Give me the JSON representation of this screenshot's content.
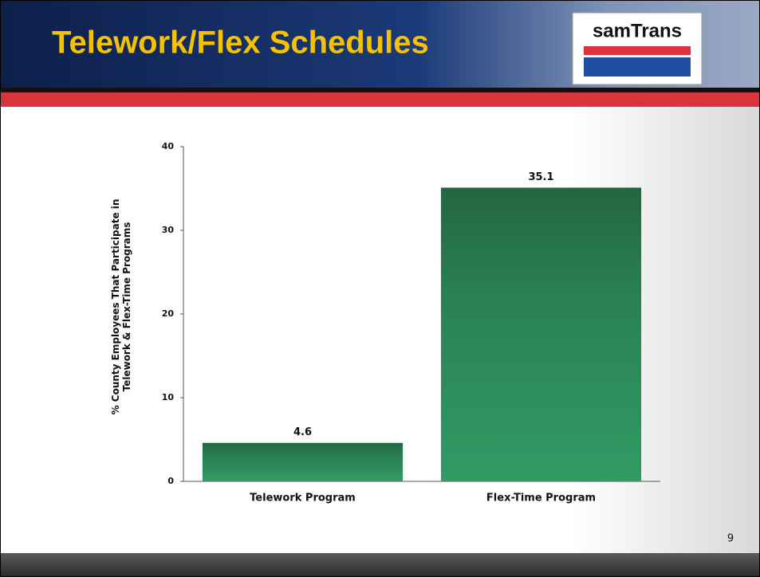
{
  "header": {
    "title": "Telework/Flex Schedules",
    "logo": "samTrans"
  },
  "page_number": "9",
  "chart_data": {
    "type": "bar",
    "ylabel": [
      "% County Employees That Participate in",
      "Telework & Flex-Time Programs"
    ],
    "categories": [
      "Telework Program",
      "Flex-Time Program"
    ],
    "values": [
      4.6,
      35.1
    ],
    "color": "#2a7f52",
    "ylim": [
      0,
      40
    ],
    "yticks": [
      0,
      10,
      20,
      30,
      40
    ],
    "grid": false
  }
}
